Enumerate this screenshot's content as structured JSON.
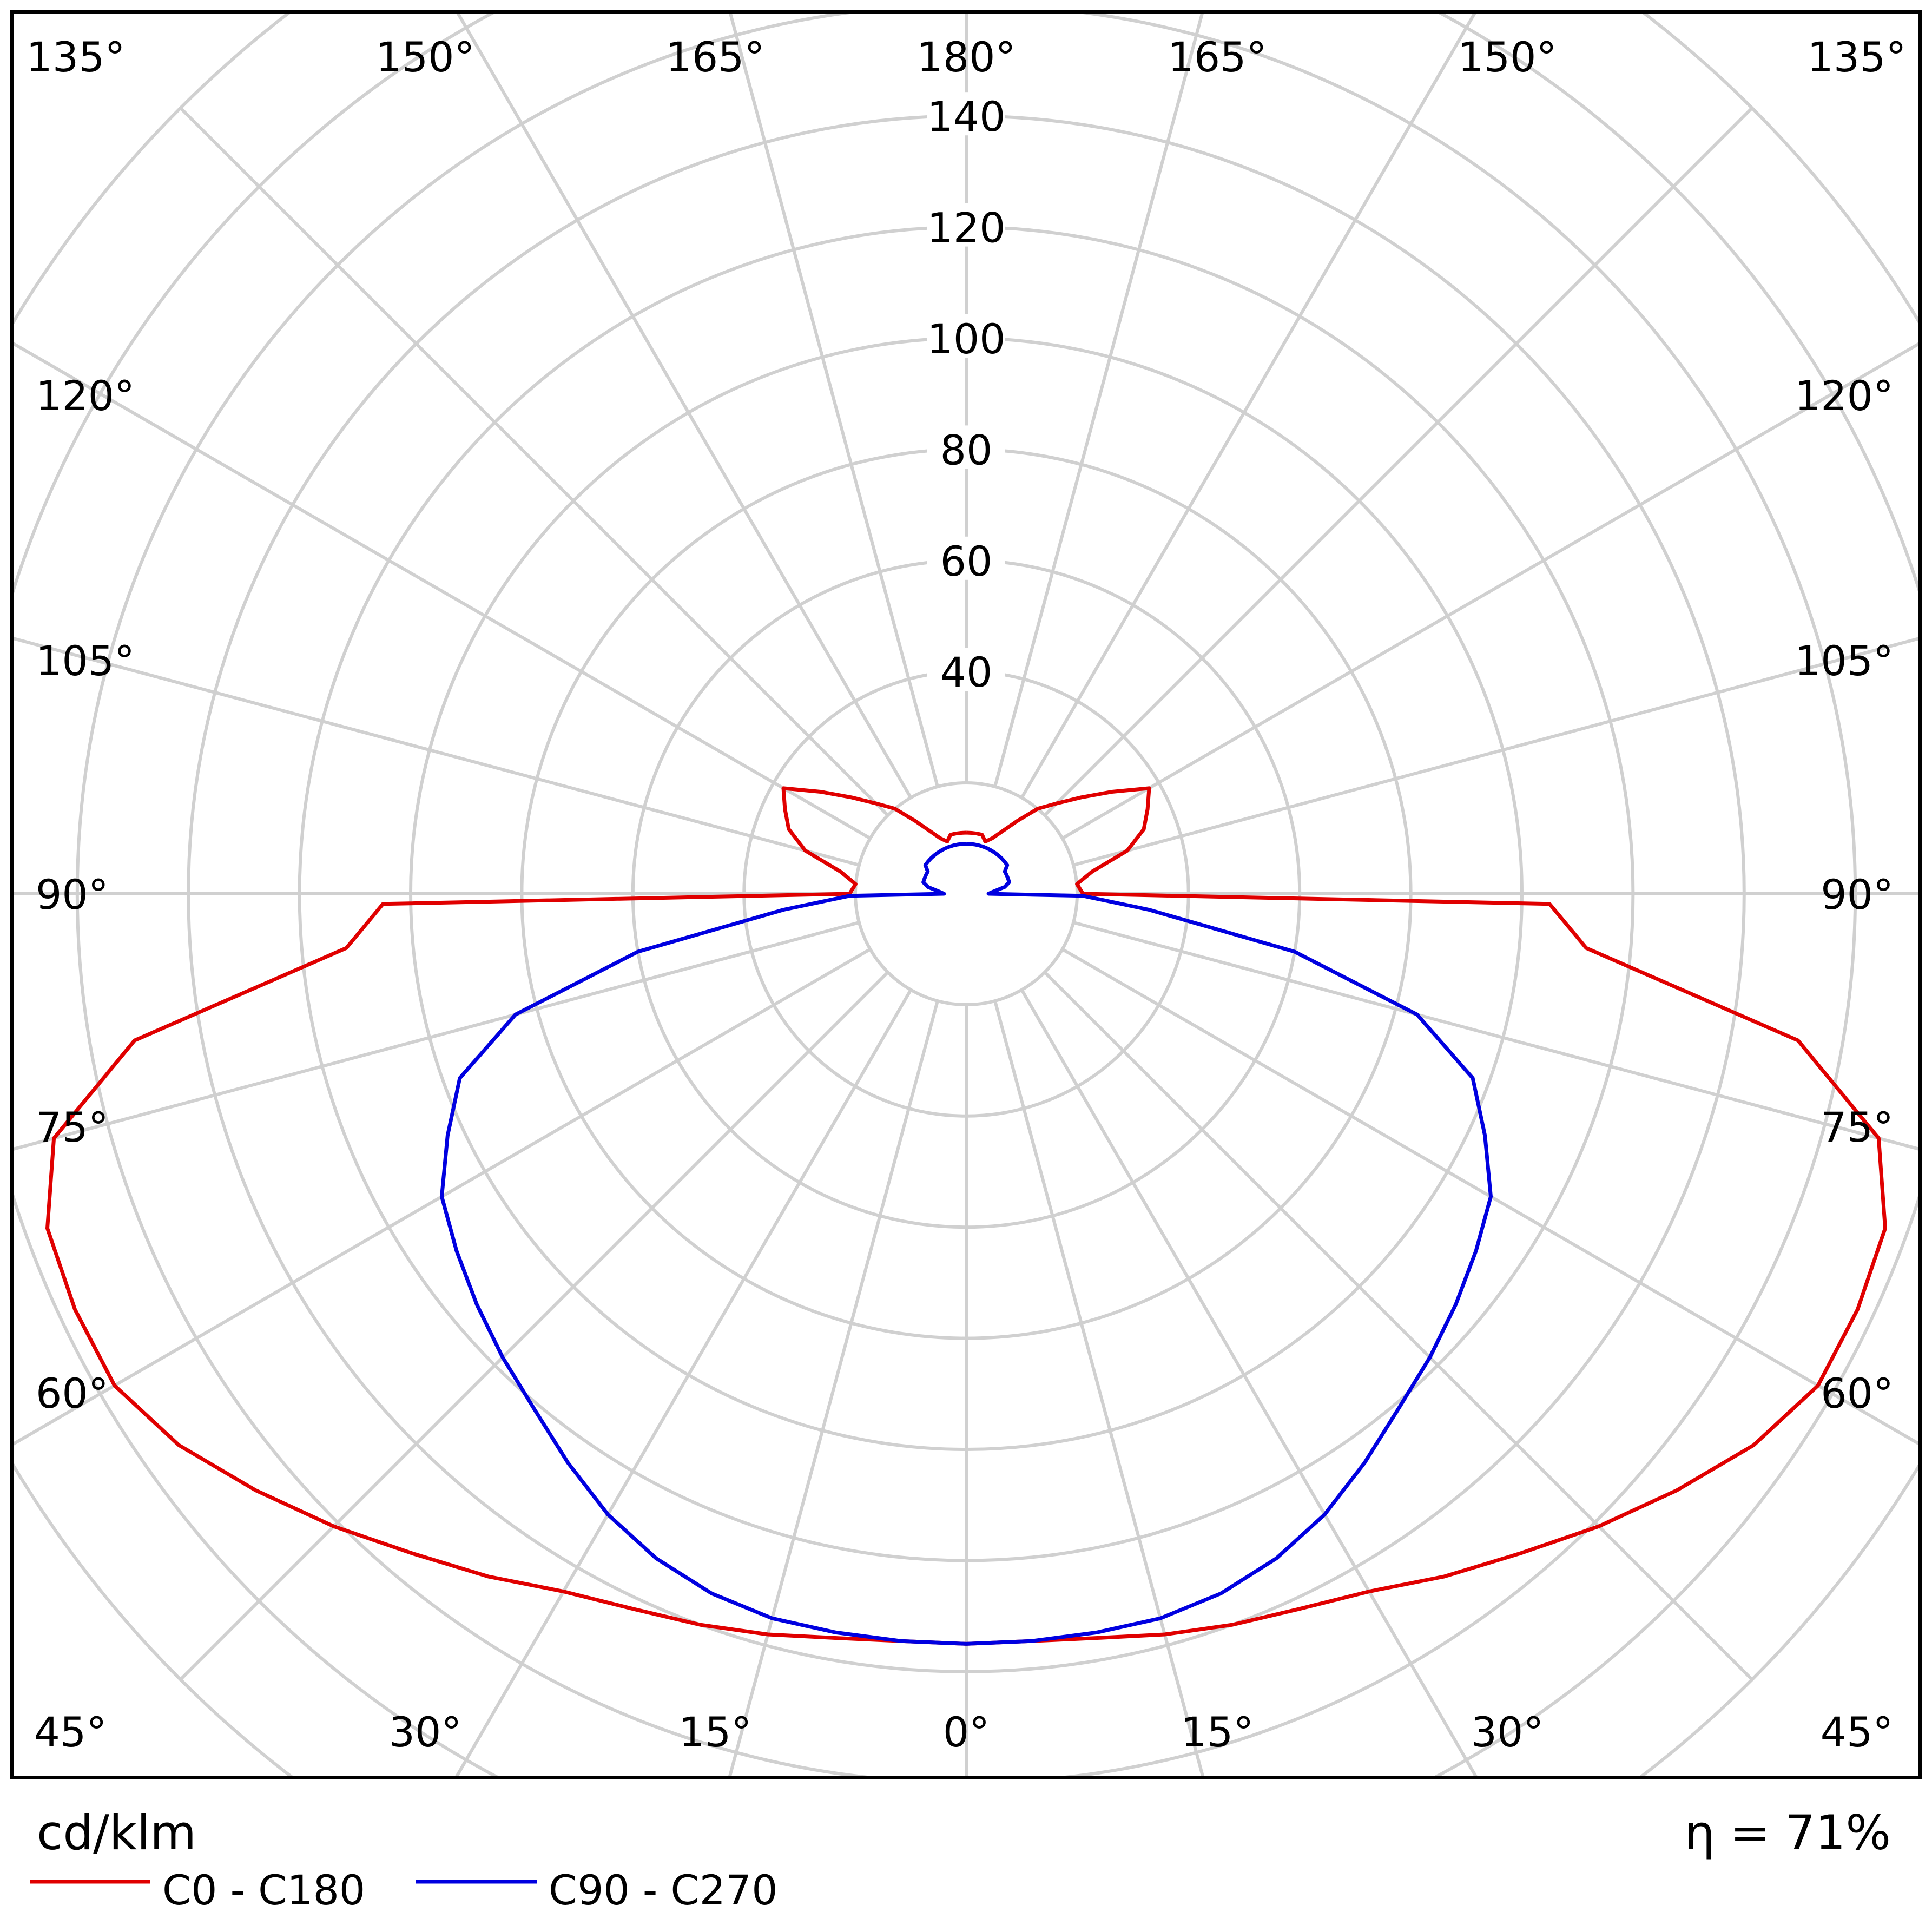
{
  "chart_data": {
    "type": "polar",
    "unit_label": "cd/klm",
    "efficiency_label": "η = 71%",
    "radial_ticks": [
      "40",
      "60",
      "80",
      "100",
      "120",
      "140"
    ],
    "radial_max": 200,
    "angle_labels_top": [
      "135°",
      "150°",
      "165°",
      "180°",
      "165°",
      "150°",
      "135°"
    ],
    "angle_labels_side": [
      "120°",
      "105°",
      "90°",
      "75°",
      "60°"
    ],
    "angle_labels_bottom": [
      "45°",
      "30°",
      "15°",
      "0°",
      "15°",
      "30°",
      "45°"
    ],
    "angles_deg": [
      0,
      5,
      10,
      15,
      20,
      25,
      30,
      35,
      40,
      45,
      50,
      55,
      60,
      65,
      70,
      75,
      80,
      85,
      89,
      90,
      95,
      100,
      105,
      110,
      115,
      120,
      125,
      130,
      135,
      140,
      145,
      150,
      155,
      160,
      165,
      170,
      175,
      180
    ],
    "series": [
      {
        "name": "C0 - C180",
        "color": "#e00000",
        "values": [
          135,
          135,
          136,
          138,
          140,
          142,
          145,
          150,
          155,
          161,
          167,
          173,
          177,
          177,
          176,
          170,
          152,
          112,
          105,
          21,
          20,
          23,
          30,
          34,
          36,
          38,
          32,
          27,
          23,
          20,
          16,
          13,
          11,
          10,
          11,
          11,
          11,
          11
        ]
      },
      {
        "name": "C90 - C270",
        "color": "#0000e0",
        "values": [
          135,
          135,
          135,
          135,
          134,
          132,
          129,
          125,
          121,
          118,
          115,
          112,
          109,
          103,
          97,
          84,
          60,
          33,
          21,
          4,
          5,
          7,
          8,
          8,
          8,
          8,
          9,
          9,
          9,
          9,
          9,
          9,
          9,
          9,
          9,
          9,
          9,
          9
        ]
      }
    ]
  }
}
